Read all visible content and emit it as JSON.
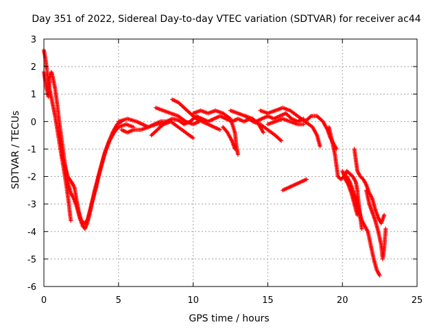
{
  "chart_data": {
    "type": "scatter",
    "title": "Day 351 of 2022, Sidereal Day-to-day VTEC variation (SDTVAR) for receiver ac44",
    "xlabel": "GPS time / hours",
    "ylabel": "SDTVAR / TECUs",
    "xlim": [
      0,
      25
    ],
    "ylim": [
      -6,
      3
    ],
    "xticks": [
      0,
      5,
      10,
      15,
      20,
      25
    ],
    "yticks": [
      -6,
      -5,
      -4,
      -3,
      -2,
      -1,
      0,
      1,
      2,
      3
    ],
    "grid": true,
    "marker": "+",
    "series": [
      {
        "name": "SDTVAR",
        "color": "#ff0000",
        "tracks": [
          [
            [
              0.0,
              2.6
            ],
            [
              0.1,
              2.3
            ],
            [
              0.2,
              1.9
            ],
            [
              0.3,
              1.4
            ],
            [
              0.45,
              1.0
            ],
            [
              0.6,
              0.6
            ],
            [
              0.75,
              0.2
            ],
            [
              0.9,
              -0.3
            ],
            [
              1.05,
              -0.8
            ],
            [
              1.2,
              -1.3
            ],
            [
              1.35,
              -1.8
            ],
            [
              1.5,
              -2.3
            ],
            [
              1.65,
              -2.9
            ],
            [
              1.8,
              -3.6
            ]
          ],
          [
            [
              0.0,
              1.8
            ],
            [
              0.15,
              1.3
            ],
            [
              0.3,
              0.9
            ],
            [
              0.4,
              1.6
            ],
            [
              0.5,
              1.8
            ],
            [
              0.6,
              1.6
            ],
            [
              0.75,
              1.2
            ],
            [
              0.9,
              0.6
            ],
            [
              1.0,
              0.1
            ],
            [
              1.15,
              -0.5
            ],
            [
              1.3,
              -1.1
            ],
            [
              1.45,
              -1.7
            ],
            [
              1.6,
              -2.2
            ],
            [
              1.8,
              -2.6
            ],
            [
              2.0,
              -2.8
            ],
            [
              2.2,
              -3.1
            ],
            [
              2.4,
              -3.5
            ],
            [
              2.6,
              -3.8
            ],
            [
              2.75,
              -3.9
            ],
            [
              2.9,
              -3.7
            ],
            [
              3.05,
              -3.4
            ],
            [
              3.2,
              -3.0
            ],
            [
              3.4,
              -2.5
            ],
            [
              3.6,
              -2.1
            ],
            [
              3.8,
              -1.7
            ],
            [
              4.0,
              -1.3
            ],
            [
              4.3,
              -0.8
            ],
            [
              4.6,
              -0.4
            ],
            [
              4.9,
              -0.1
            ],
            [
              5.2,
              0.0
            ]
          ],
          [
            [
              1.2,
              -1.2
            ],
            [
              1.4,
              -1.6
            ],
            [
              1.6,
              -2.0
            ],
            [
              1.85,
              -2.2
            ],
            [
              2.05,
              -2.4
            ],
            [
              2.2,
              -2.9
            ],
            [
              2.35,
              -3.3
            ],
            [
              2.5,
              -3.6
            ],
            [
              2.7,
              -3.7
            ],
            [
              2.9,
              -3.6
            ],
            [
              3.1,
              -3.2
            ],
            [
              3.3,
              -2.8
            ],
            [
              3.5,
              -2.4
            ],
            [
              3.7,
              -1.9
            ],
            [
              3.9,
              -1.5
            ],
            [
              4.1,
              -1.1
            ],
            [
              4.4,
              -0.7
            ],
            [
              4.7,
              -0.4
            ],
            [
              5.0,
              -0.2
            ],
            [
              5.5,
              -0.1
            ],
            [
              6.0,
              -0.2
            ]
          ],
          [
            [
              5.0,
              0.0
            ],
            [
              5.6,
              0.1
            ],
            [
              6.2,
              0.0
            ],
            [
              6.6,
              -0.1
            ],
            [
              7.0,
              -0.2
            ],
            [
              7.4,
              -0.1
            ],
            [
              7.8,
              0.0
            ],
            [
              8.2,
              0.0
            ],
            [
              8.6,
              0.1
            ],
            [
              9.0,
              0.05
            ],
            [
              9.4,
              -0.1
            ],
            [
              9.8,
              0.0
            ],
            [
              10.2,
              0.2
            ],
            [
              10.6,
              0.1
            ],
            [
              11.0,
              0.0
            ],
            [
              11.4,
              0.1
            ],
            [
              11.8,
              0.2
            ],
            [
              12.2,
              0.1
            ],
            [
              12.6,
              0.0
            ],
            [
              13.0,
              0.1
            ],
            [
              13.4,
              0.0
            ],
            [
              13.8,
              0.1
            ],
            [
              14.2,
              0.0
            ],
            [
              14.6,
              0.1
            ],
            [
              15.0,
              0.2
            ],
            [
              15.4,
              0.1
            ],
            [
              15.8,
              0.2
            ],
            [
              16.2,
              0.3
            ],
            [
              16.6,
              0.1
            ],
            [
              17.0,
              0.0
            ],
            [
              17.4,
              0.1
            ]
          ],
          [
            [
              5.2,
              -0.3
            ],
            [
              5.6,
              -0.4
            ],
            [
              6.0,
              -0.3
            ],
            [
              6.5,
              -0.3
            ],
            [
              7.0,
              -0.2
            ],
            [
              7.5,
              -0.1
            ],
            [
              8.0,
              -0.1
            ],
            [
              8.5,
              0.0
            ],
            [
              9.0,
              -0.2
            ],
            [
              9.5,
              -0.4
            ],
            [
              10.0,
              -0.6
            ]
          ],
          [
            [
              7.5,
              0.5
            ],
            [
              8.0,
              0.4
            ],
            [
              8.5,
              0.3
            ],
            [
              9.0,
              0.2
            ],
            [
              9.5,
              0.0
            ],
            [
              10.0,
              -0.1
            ],
            [
              10.4,
              0.0
            ]
          ],
          [
            [
              8.6,
              0.8
            ],
            [
              9.0,
              0.7
            ],
            [
              9.4,
              0.5
            ],
            [
              9.8,
              0.3
            ],
            [
              10.2,
              0.1
            ],
            [
              10.6,
              0.0
            ],
            [
              11.0,
              -0.1
            ],
            [
              11.4,
              -0.2
            ],
            [
              11.8,
              -0.3
            ]
          ],
          [
            [
              7.2,
              -0.5
            ],
            [
              7.6,
              -0.3
            ],
            [
              8.0,
              -0.1
            ],
            [
              8.4,
              0.0
            ]
          ],
          [
            [
              10.0,
              0.3
            ],
            [
              10.5,
              0.4
            ],
            [
              11.0,
              0.3
            ],
            [
              11.5,
              0.4
            ],
            [
              12.0,
              0.3
            ],
            [
              12.5,
              0.1
            ],
            [
              12.8,
              -0.4
            ],
            [
              12.9,
              -0.9
            ],
            [
              13.0,
              -1.2
            ]
          ],
          [
            [
              12.0,
              -0.2
            ],
            [
              12.3,
              -0.4
            ],
            [
              12.6,
              -0.7
            ],
            [
              12.8,
              -1.0
            ]
          ],
          [
            [
              12.5,
              0.4
            ],
            [
              13.0,
              0.3
            ],
            [
              13.5,
              0.2
            ],
            [
              14.0,
              0.1
            ],
            [
              14.4,
              -0.1
            ],
            [
              14.7,
              -0.4
            ]
          ],
          [
            [
              13.5,
              0.2
            ],
            [
              14.0,
              0.0
            ],
            [
              14.5,
              -0.1
            ],
            [
              15.0,
              -0.3
            ],
            [
              15.5,
              -0.5
            ],
            [
              15.9,
              -0.7
            ]
          ],
          [
            [
              14.5,
              0.4
            ],
            [
              15.0,
              0.3
            ],
            [
              15.5,
              0.4
            ],
            [
              16.0,
              0.5
            ],
            [
              16.5,
              0.4
            ],
            [
              17.0,
              0.2
            ],
            [
              17.5,
              0.0
            ],
            [
              18.0,
              -0.2
            ],
            [
              18.3,
              -0.5
            ],
            [
              18.5,
              -0.9
            ]
          ],
          [
            [
              15.0,
              -0.1
            ],
            [
              15.5,
              0.0
            ],
            [
              16.0,
              0.1
            ],
            [
              16.5,
              0.0
            ],
            [
              17.0,
              -0.1
            ],
            [
              17.4,
              -0.1
            ]
          ],
          [
            [
              16.0,
              -2.5
            ],
            [
              16.4,
              -2.4
            ],
            [
              16.8,
              -2.3
            ],
            [
              17.2,
              -2.2
            ],
            [
              17.6,
              -2.1
            ]
          ],
          [
            [
              17.5,
              0.0
            ],
            [
              17.9,
              0.2
            ],
            [
              18.3,
              0.2
            ],
            [
              18.7,
              0.0
            ],
            [
              19.0,
              -0.3
            ],
            [
              19.2,
              -0.6
            ],
            [
              19.4,
              -0.8
            ],
            [
              19.6,
              -1.0
            ]
          ],
          [
            [
              19.1,
              -0.2
            ],
            [
              19.3,
              -0.7
            ],
            [
              19.5,
              -1.2
            ],
            [
              19.6,
              -1.6
            ],
            [
              19.7,
              -2.0
            ],
            [
              19.9,
              -2.1
            ],
            [
              20.1,
              -2.0
            ],
            [
              20.3,
              -1.8
            ],
            [
              20.5,
              -1.9
            ],
            [
              20.7,
              -2.0
            ],
            [
              20.9,
              -2.2
            ],
            [
              21.0,
              -2.5
            ],
            [
              21.1,
              -3.0
            ],
            [
              21.2,
              -3.5
            ],
            [
              21.3,
              -3.9
            ]
          ],
          [
            [
              20.3,
              -2.0
            ],
            [
              20.5,
              -2.2
            ],
            [
              20.7,
              -2.5
            ],
            [
              20.9,
              -2.8
            ],
            [
              21.1,
              -3.2
            ],
            [
              21.3,
              -3.6
            ],
            [
              21.5,
              -3.8
            ],
            [
              21.7,
              -4.0
            ],
            [
              21.9,
              -4.5
            ],
            [
              22.1,
              -5.0
            ],
            [
              22.3,
              -5.4
            ],
            [
              22.5,
              -5.6
            ]
          ],
          [
            [
              20.8,
              -1.0
            ],
            [
              20.9,
              -1.4
            ],
            [
              21.0,
              -1.8
            ],
            [
              21.2,
              -2.0
            ],
            [
              21.4,
              -2.1
            ],
            [
              21.6,
              -2.3
            ],
            [
              21.8,
              -2.6
            ],
            [
              22.0,
              -2.8
            ],
            [
              22.2,
              -3.2
            ],
            [
              22.4,
              -3.5
            ],
            [
              22.6,
              -3.7
            ],
            [
              22.8,
              -3.4
            ]
          ],
          [
            [
              21.6,
              -2.5
            ],
            [
              21.8,
              -3.0
            ],
            [
              22.0,
              -3.3
            ],
            [
              22.2,
              -3.6
            ],
            [
              22.4,
              -4.0
            ],
            [
              22.6,
              -4.5
            ],
            [
              22.7,
              -5.0
            ],
            [
              22.8,
              -4.6
            ],
            [
              22.9,
              -3.9
            ]
          ],
          [
            [
              20.0,
              -1.8
            ],
            [
              20.2,
              -2.1
            ],
            [
              20.4,
              -2.3
            ],
            [
              20.6,
              -2.6
            ],
            [
              20.8,
              -3.0
            ],
            [
              21.0,
              -3.4
            ]
          ]
        ]
      }
    ]
  }
}
